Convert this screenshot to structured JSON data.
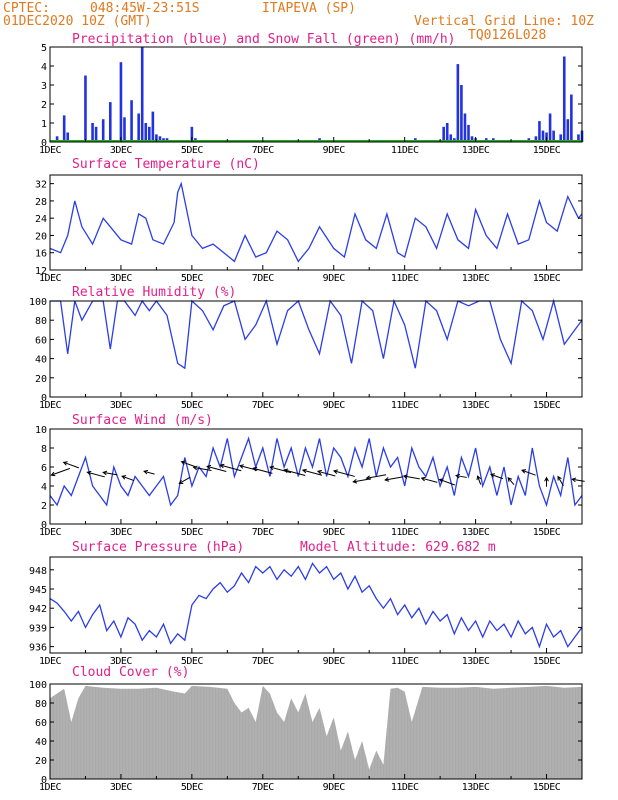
{
  "header": {
    "source": "CPTEC:",
    "coords": "048:45W-23:51S",
    "location": "ITAPEVA (SP)",
    "run": "01DEC2020 10Z (GMT)",
    "grid_note": "Vertical Grid Line: 10Z",
    "code": "TQ0126L028"
  },
  "colors": {
    "precip": "#2233dd",
    "snow": "#22aa22",
    "line": "#2b3ee6",
    "wind_arrow": "#000000",
    "cloud": "#aaaaaa",
    "header_text": "#e07a1f",
    "title_text": "#e0208a"
  },
  "x_days": [
    "1DEC",
    "3DEC",
    "5DEC",
    "7DEC",
    "9DEC",
    "11DEC",
    "13DEC",
    "15DEC"
  ],
  "chart_data": [
    {
      "type": "bar",
      "title": "Precipitation (blue) and Snow Fall (green) (mm/h)",
      "ylim": [
        0,
        5
      ],
      "yticks": [
        0,
        1,
        2,
        3,
        4,
        5
      ],
      "grid": true,
      "x_day_range": [
        1,
        16
      ],
      "series": [
        {
          "name": "Precipitation",
          "x": [
            1.2,
            1.4,
            1.5,
            2.0,
            2.2,
            2.3,
            2.5,
            2.7,
            3.0,
            3.1,
            3.3,
            3.5,
            3.6,
            3.7,
            3.8,
            3.9,
            4.0,
            4.1,
            4.2,
            4.3,
            4.4,
            5.0,
            5.1,
            6.0,
            8.6,
            9.0,
            11.3,
            12.1,
            12.2,
            12.3,
            12.4,
            12.5,
            12.6,
            12.7,
            12.8,
            12.9,
            13.0,
            13.1,
            13.2,
            13.3,
            13.4,
            13.5,
            13.6,
            14.1,
            14.5,
            14.7,
            14.8,
            14.9,
            15.0,
            15.1,
            15.2,
            15.4,
            15.5,
            15.6,
            15.7,
            15.9,
            16.0
          ],
          "values": [
            0.3,
            1.4,
            0.5,
            3.5,
            1.0,
            0.8,
            1.2,
            2.1,
            4.2,
            1.3,
            2.2,
            1.5,
            5.0,
            1.0,
            0.8,
            1.6,
            0.4,
            0.3,
            0.2,
            0.2,
            0.1,
            0.8,
            0.2,
            0.1,
            0.2,
            0.1,
            0.2,
            0.8,
            1.0,
            0.4,
            0.2,
            4.1,
            3.0,
            1.5,
            0.9,
            0.3,
            0.2,
            0.1,
            0.1,
            0.2,
            0.1,
            0.2,
            0.1,
            0.1,
            0.2,
            0.3,
            1.1,
            0.6,
            0.5,
            1.5,
            0.6,
            0.4,
            4.5,
            1.2,
            2.5,
            0.4,
            0.6
          ]
        },
        {
          "name": "Snow Fall",
          "x": [
            1.0,
            16.0
          ],
          "values": [
            0.0,
            0.0
          ]
        }
      ]
    },
    {
      "type": "line",
      "title": "Surface Temperature (nC)",
      "ylim": [
        12,
        34
      ],
      "yticks": [
        12,
        16,
        20,
        24,
        28,
        32
      ],
      "x_day_range": [
        1,
        16
      ],
      "x": [
        1.0,
        1.3,
        1.5,
        1.7,
        1.9,
        2.2,
        2.5,
        2.8,
        3.0,
        3.3,
        3.5,
        3.7,
        3.9,
        4.2,
        4.5,
        4.6,
        4.7,
        4.8,
        5.0,
        5.3,
        5.6,
        5.9,
        6.2,
        6.5,
        6.8,
        7.1,
        7.4,
        7.7,
        8.0,
        8.3,
        8.6,
        9.0,
        9.3,
        9.6,
        9.9,
        10.2,
        10.5,
        10.8,
        11.0,
        11.3,
        11.6,
        11.9,
        12.2,
        12.5,
        12.8,
        13.0,
        13.3,
        13.6,
        13.9,
        14.2,
        14.5,
        14.8,
        15.0,
        15.3,
        15.6,
        15.9,
        16.0
      ],
      "values": [
        17,
        16,
        20,
        28,
        22,
        18,
        24,
        21,
        19,
        18,
        25,
        24,
        19,
        18,
        23,
        30,
        32,
        28,
        20,
        17,
        18,
        16,
        14,
        20,
        15,
        16,
        21,
        19,
        14,
        17,
        22,
        17,
        15,
        25,
        19,
        17,
        25,
        16,
        15,
        24,
        22,
        17,
        25,
        19,
        17,
        26,
        20,
        17,
        25,
        18,
        19,
        28,
        23,
        21,
        29,
        24,
        25
      ]
    },
    {
      "type": "line",
      "title": "Relative Humidity (%)",
      "ylim": [
        0,
        100
      ],
      "yticks": [
        0,
        20,
        40,
        60,
        80,
        100
      ],
      "x_day_range": [
        1,
        16
      ],
      "x": [
        1.0,
        1.3,
        1.5,
        1.7,
        1.9,
        2.2,
        2.5,
        2.7,
        2.9,
        3.1,
        3.4,
        3.6,
        3.8,
        4.0,
        4.3,
        4.6,
        4.8,
        5.0,
        5.3,
        5.6,
        5.9,
        6.2,
        6.5,
        6.8,
        7.1,
        7.4,
        7.7,
        8.0,
        8.3,
        8.6,
        8.9,
        9.2,
        9.5,
        9.8,
        10.1,
        10.4,
        10.7,
        11.0,
        11.3,
        11.6,
        11.9,
        12.2,
        12.5,
        12.8,
        13.1,
        13.4,
        13.7,
        14.0,
        14.3,
        14.6,
        14.9,
        15.2,
        15.5,
        15.8,
        16.0
      ],
      "values": [
        100,
        100,
        45,
        100,
        80,
        100,
        100,
        50,
        100,
        100,
        85,
        100,
        90,
        100,
        85,
        35,
        30,
        100,
        90,
        70,
        95,
        100,
        60,
        75,
        100,
        55,
        90,
        100,
        70,
        45,
        100,
        85,
        35,
        100,
        90,
        40,
        100,
        75,
        30,
        100,
        90,
        60,
        100,
        95,
        100,
        100,
        60,
        35,
        100,
        90,
        60,
        100,
        55,
        70,
        80
      ]
    },
    {
      "type": "line",
      "title": "Surface Wind (m/s)",
      "ylim": [
        0,
        10
      ],
      "yticks": [
        0,
        2,
        4,
        6,
        8,
        10
      ],
      "x_day_range": [
        1,
        16
      ],
      "x": [
        1.0,
        1.2,
        1.4,
        1.6,
        1.8,
        2.0,
        2.2,
        2.4,
        2.6,
        2.8,
        3.0,
        3.2,
        3.4,
        3.6,
        3.8,
        4.0,
        4.2,
        4.4,
        4.6,
        4.8,
        5.0,
        5.2,
        5.4,
        5.6,
        5.8,
        6.0,
        6.2,
        6.4,
        6.6,
        6.8,
        7.0,
        7.2,
        7.4,
        7.6,
        7.8,
        8.0,
        8.2,
        8.4,
        8.6,
        8.8,
        9.0,
        9.2,
        9.4,
        9.6,
        9.8,
        10.0,
        10.2,
        10.4,
        10.6,
        10.8,
        11.0,
        11.2,
        11.4,
        11.6,
        11.8,
        12.0,
        12.2,
        12.4,
        12.6,
        12.8,
        13.0,
        13.2,
        13.4,
        13.6,
        13.8,
        14.0,
        14.2,
        14.4,
        14.6,
        14.8,
        15.0,
        15.2,
        15.4,
        15.6,
        15.8,
        16.0
      ],
      "values": [
        3,
        2,
        4,
        3,
        5,
        7,
        4,
        3,
        2,
        6,
        4,
        3,
        5,
        4,
        3,
        4,
        5,
        2,
        3,
        7,
        4,
        6,
        5,
        8,
        6,
        9,
        5,
        7,
        9,
        6,
        8,
        5,
        9,
        6,
        8,
        5,
        8,
        6,
        9,
        5,
        8,
        7,
        5,
        8,
        6,
        9,
        5,
        8,
        6,
        7,
        4,
        8,
        6,
        5,
        7,
        4,
        6,
        3,
        7,
        5,
        8,
        4,
        6,
        3,
        6,
        2,
        5,
        3,
        8,
        4,
        2,
        5,
        3,
        7,
        2,
        3
      ],
      "wind_arrows": [
        {
          "x": 1.3,
          "y": 5.5,
          "dir": 200,
          "len": 1.1
        },
        {
          "x": 1.6,
          "y": 6.2,
          "dir": 160,
          "len": 0.9
        },
        {
          "x": 2.3,
          "y": 5.2,
          "dir": 165,
          "len": 1.0
        },
        {
          "x": 2.7,
          "y": 5.3,
          "dir": 170,
          "len": 0.8
        },
        {
          "x": 3.2,
          "y": 4.8,
          "dir": 160,
          "len": 0.7
        },
        {
          "x": 3.8,
          "y": 5.4,
          "dir": 165,
          "len": 0.6
        },
        {
          "x": 4.8,
          "y": 4.6,
          "dir": 210,
          "len": 0.7
        },
        {
          "x": 4.9,
          "y": 6.3,
          "dir": 160,
          "len": 0.8
        },
        {
          "x": 5.3,
          "y": 5.8,
          "dir": 170,
          "len": 1.0
        },
        {
          "x": 5.7,
          "y": 5.8,
          "dir": 165,
          "len": 1.1
        },
        {
          "x": 6.1,
          "y": 5.9,
          "dir": 165,
          "len": 1.2
        },
        {
          "x": 6.6,
          "y": 5.9,
          "dir": 165,
          "len": 1.0
        },
        {
          "x": 7.0,
          "y": 5.6,
          "dir": 165,
          "len": 1.1
        },
        {
          "x": 7.5,
          "y": 5.7,
          "dir": 165,
          "len": 1.2
        },
        {
          "x": 7.9,
          "y": 5.4,
          "dir": 165,
          "len": 1.2
        },
        {
          "x": 8.4,
          "y": 5.4,
          "dir": 165,
          "len": 1.1
        },
        {
          "x": 8.8,
          "y": 5.3,
          "dir": 165,
          "len": 1.0
        },
        {
          "x": 9.3,
          "y": 5.3,
          "dir": 165,
          "len": 1.2
        },
        {
          "x": 9.8,
          "y": 4.6,
          "dir": 190,
          "len": 1.0
        },
        {
          "x": 10.2,
          "y": 5.0,
          "dir": 190,
          "len": 1.1
        },
        {
          "x": 10.7,
          "y": 4.8,
          "dir": 190,
          "len": 1.0
        },
        {
          "x": 11.2,
          "y": 4.9,
          "dir": 170,
          "len": 0.9
        },
        {
          "x": 11.7,
          "y": 4.6,
          "dir": 165,
          "len": 0.9
        },
        {
          "x": 12.2,
          "y": 4.4,
          "dir": 160,
          "len": 0.9
        },
        {
          "x": 12.6,
          "y": 5.0,
          "dir": 170,
          "len": 0.6
        },
        {
          "x": 13.1,
          "y": 4.6,
          "dir": 110,
          "len": 0.5
        },
        {
          "x": 13.6,
          "y": 5.0,
          "dir": 160,
          "len": 0.7
        },
        {
          "x": 14.0,
          "y": 4.5,
          "dir": 130,
          "len": 0.5
        },
        {
          "x": 14.5,
          "y": 5.4,
          "dir": 160,
          "len": 0.8
        },
        {
          "x": 15.0,
          "y": 4.4,
          "dir": 90,
          "len": 0.5
        },
        {
          "x": 15.4,
          "y": 4.5,
          "dir": 120,
          "len": 0.6
        },
        {
          "x": 15.9,
          "y": 4.6,
          "dir": 170,
          "len": 0.7
        }
      ]
    },
    {
      "type": "line",
      "title": "Surface Pressure (hPa)",
      "annotation": "Model Altitude: 629.682 m",
      "ylim": [
        935,
        950
      ],
      "yticks": [
        936,
        939,
        942,
        945,
        948
      ],
      "yticks_labels": [
        "936",
        "939",
        "942",
        "945",
        "948"
      ],
      "x_day_range": [
        1,
        16
      ],
      "x": [
        1.0,
        1.2,
        1.4,
        1.6,
        1.8,
        2.0,
        2.2,
        2.4,
        2.6,
        2.8,
        3.0,
        3.2,
        3.4,
        3.6,
        3.8,
        4.0,
        4.2,
        4.4,
        4.6,
        4.8,
        5.0,
        5.2,
        5.4,
        5.6,
        5.8,
        6.0,
        6.2,
        6.4,
        6.6,
        6.8,
        7.0,
        7.2,
        7.4,
        7.6,
        7.8,
        8.0,
        8.2,
        8.4,
        8.6,
        8.8,
        9.0,
        9.2,
        9.4,
        9.6,
        9.8,
        10.0,
        10.2,
        10.4,
        10.6,
        10.8,
        11.0,
        11.2,
        11.4,
        11.6,
        11.8,
        12.0,
        12.2,
        12.4,
        12.6,
        12.8,
        13.0,
        13.2,
        13.4,
        13.6,
        13.8,
        14.0,
        14.2,
        14.4,
        14.6,
        14.8,
        15.0,
        15.2,
        15.4,
        15.6,
        15.8,
        16.0
      ],
      "values": [
        943.5,
        942.8,
        941.5,
        940.0,
        941.5,
        939.0,
        941.0,
        942.5,
        938.5,
        940.0,
        937.5,
        940.5,
        939.5,
        937.0,
        938.5,
        937.5,
        939.5,
        936.5,
        938.0,
        937.0,
        942.5,
        944.0,
        943.5,
        945.0,
        946.0,
        944.5,
        945.5,
        947.5,
        946.0,
        948.5,
        947.5,
        948.5,
        946.5,
        948.0,
        947.0,
        948.5,
        946.5,
        949.0,
        947.5,
        948.5,
        946.5,
        947.5,
        945.0,
        947.0,
        944.5,
        945.5,
        943.5,
        942.0,
        943.5,
        941.0,
        942.5,
        940.5,
        942.0,
        939.5,
        941.5,
        940.0,
        941.0,
        938.0,
        940.5,
        938.5,
        940.0,
        937.5,
        940.0,
        938.5,
        939.5,
        937.5,
        940.0,
        938.0,
        939.0,
        936.0,
        939.5,
        937.5,
        938.5,
        936.0,
        937.5,
        939.0
      ]
    },
    {
      "type": "area",
      "title": "Cloud Cover (%)",
      "ylim": [
        0,
        100
      ],
      "yticks": [
        0,
        20,
        40,
        60,
        80,
        100
      ],
      "x_day_range": [
        1,
        16
      ],
      "x": [
        1.0,
        1.2,
        1.4,
        1.6,
        1.8,
        2.0,
        2.5,
        3.0,
        3.5,
        4.0,
        4.5,
        4.8,
        5.0,
        5.5,
        6.0,
        6.2,
        6.4,
        6.6,
        6.8,
        7.0,
        7.2,
        7.4,
        7.6,
        7.8,
        8.0,
        8.2,
        8.4,
        8.6,
        8.8,
        9.0,
        9.2,
        9.4,
        9.6,
        9.8,
        10.0,
        10.2,
        10.4,
        10.6,
        10.8,
        11.0,
        11.2,
        11.5,
        12.0,
        12.5,
        13.0,
        13.5,
        14.0,
        14.5,
        15.0,
        15.5,
        16.0
      ],
      "values": [
        85,
        90,
        95,
        60,
        85,
        98,
        96,
        95,
        95,
        96,
        92,
        90,
        98,
        97,
        95,
        80,
        70,
        75,
        60,
        98,
        90,
        70,
        60,
        85,
        70,
        90,
        60,
        75,
        45,
        65,
        30,
        50,
        20,
        40,
        10,
        30,
        15,
        95,
        96,
        92,
        60,
        97,
        96,
        96,
        97,
        95,
        96,
        97,
        98,
        96,
        97
      ]
    }
  ]
}
